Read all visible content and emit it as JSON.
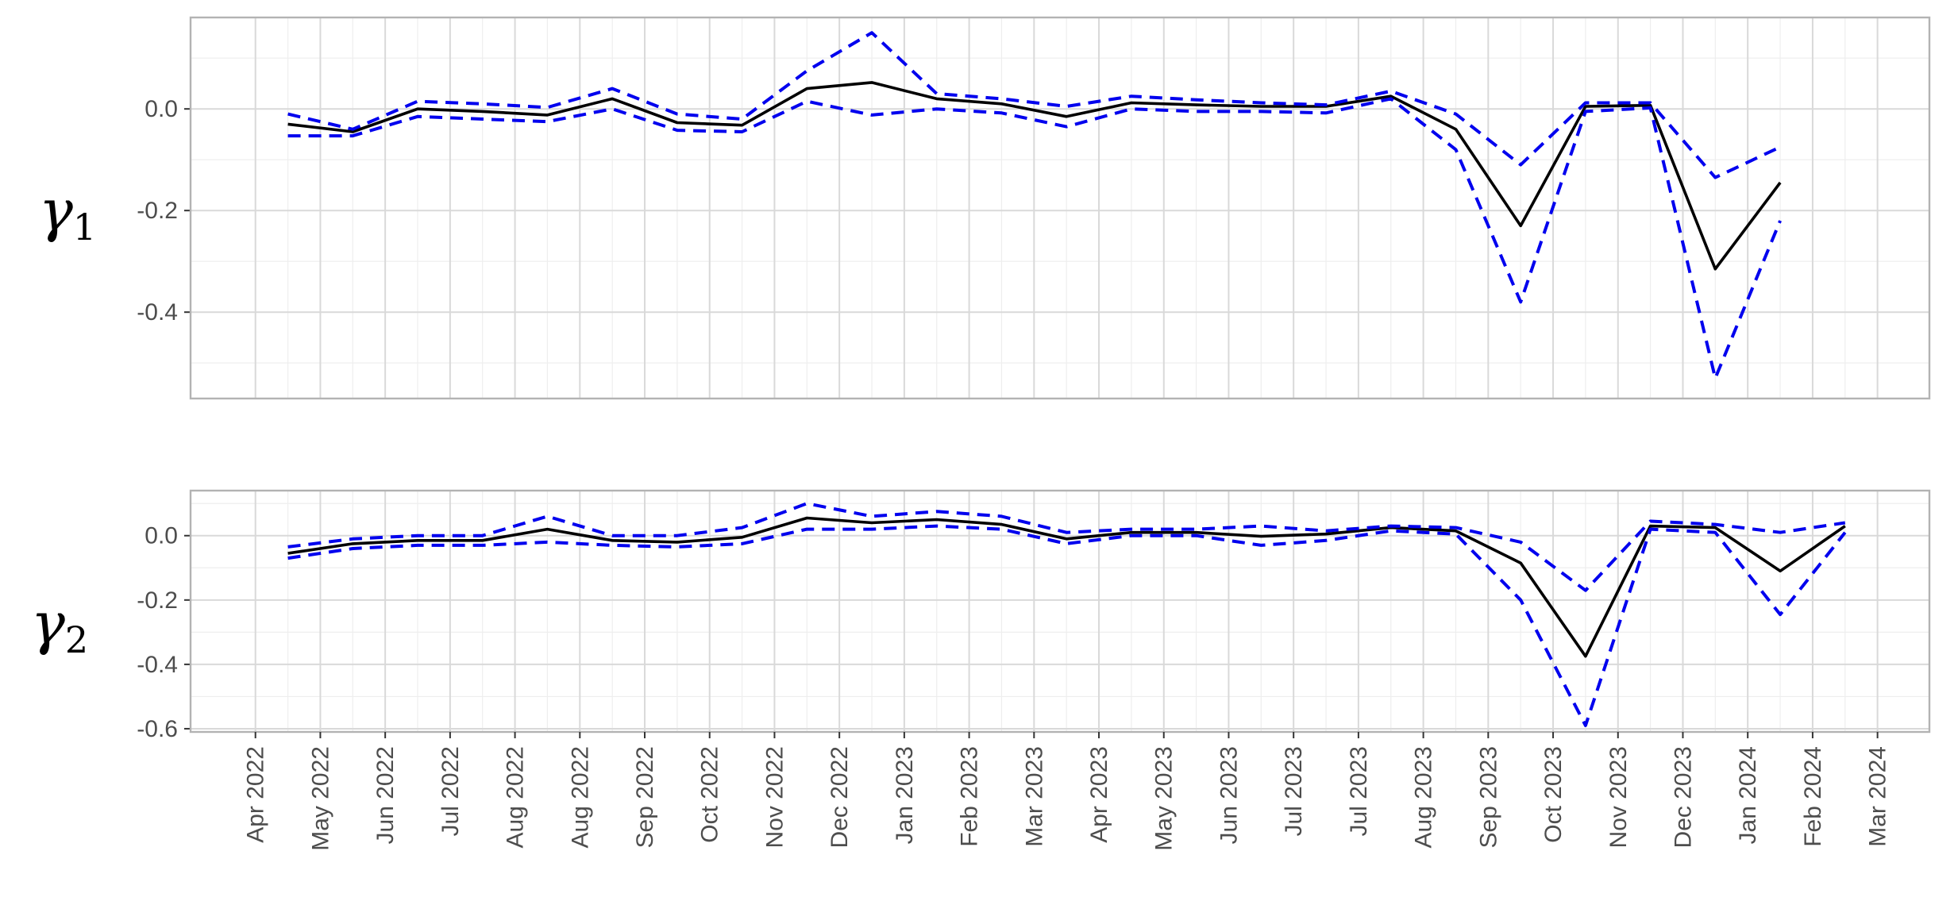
{
  "chart_data": [
    {
      "type": "line",
      "title": "",
      "ylabel": "γ1",
      "ylabel_symbol": "γ",
      "ylabel_subscript": "1",
      "ylim": [
        -0.57,
        0.18
      ],
      "y_ticks": [
        -0.4,
        -0.2,
        0.0
      ],
      "y_tick_labels": [
        "-0.4",
        "-0.2",
        "0.0"
      ],
      "grid": true,
      "x": [
        1.5,
        2.5,
        3.5,
        4.5,
        5.5,
        6.5,
        7.5,
        8.5,
        9.5,
        10.5,
        11.5,
        12.5,
        13.5,
        14.5,
        15.5,
        16.5,
        17.5,
        18.5,
        19.5,
        20.5,
        21.5,
        22.5,
        23.5,
        24.5,
        25.5
      ],
      "series": [
        {
          "name": "",
          "style": "solid",
          "color": "#000000",
          "values": [
            -0.03,
            -0.045,
            0.0,
            -0.005,
            -0.012,
            0.02,
            -0.027,
            -0.032,
            0.04,
            0.052,
            0.02,
            0.01,
            -0.015,
            0.012,
            0.008,
            0.005,
            0.005,
            0.025,
            -0.04,
            -0.23,
            0.005,
            0.007,
            -0.315,
            -0.145,
            null
          ]
        },
        {
          "name": "",
          "style": "dashed",
          "color": "#0000ee",
          "values": [
            -0.01,
            -0.04,
            0.015,
            0.01,
            0.003,
            0.04,
            -0.01,
            -0.02,
            0.075,
            0.15,
            0.03,
            0.02,
            0.005,
            0.025,
            0.018,
            0.012,
            0.008,
            0.035,
            -0.01,
            -0.11,
            0.012,
            0.012,
            -0.135,
            -0.075,
            null
          ]
        },
        {
          "name": "",
          "style": "dashed",
          "color": "#0000ee",
          "values": [
            -0.053,
            -0.053,
            -0.015,
            -0.02,
            -0.025,
            0.0,
            -0.042,
            -0.045,
            0.015,
            -0.012,
            0.0,
            -0.008,
            -0.035,
            0.0,
            -0.005,
            -0.005,
            -0.008,
            0.02,
            -0.08,
            -0.38,
            -0.005,
            0.002,
            -0.53,
            -0.22,
            null
          ]
        }
      ]
    },
    {
      "type": "line",
      "title": "",
      "ylabel": "γ2",
      "ylabel_symbol": "γ",
      "ylabel_subscript": "2",
      "ylim": [
        -0.61,
        0.14
      ],
      "y_ticks": [
        -0.6,
        -0.4,
        -0.2,
        0.0
      ],
      "y_tick_labels": [
        "-0.6",
        "-0.4",
        "-0.2",
        "0.0"
      ],
      "grid": true,
      "x": [
        1.5,
        2.5,
        3.5,
        4.5,
        5.5,
        6.5,
        7.5,
        8.5,
        9.5,
        10.5,
        11.5,
        12.5,
        13.5,
        14.5,
        15.5,
        16.5,
        17.5,
        18.5,
        19.5,
        20.5,
        21.5,
        22.5,
        23.5,
        24.5,
        25.5
      ],
      "series": [
        {
          "name": "",
          "style": "solid",
          "color": "#000000",
          "values": [
            -0.055,
            -0.025,
            -0.015,
            -0.015,
            0.02,
            -0.015,
            -0.02,
            -0.005,
            0.055,
            0.04,
            0.05,
            0.035,
            -0.01,
            0.01,
            0.01,
            -0.002,
            0.005,
            0.025,
            0.015,
            -0.085,
            -0.375,
            0.03,
            0.025,
            -0.11,
            0.03
          ]
        },
        {
          "name": "",
          "style": "dashed",
          "color": "#0000ee",
          "values": [
            -0.035,
            -0.01,
            0.0,
            0.0,
            0.06,
            0.0,
            0.0,
            0.025,
            0.1,
            0.06,
            0.075,
            0.06,
            0.01,
            0.02,
            0.02,
            0.03,
            0.015,
            0.03,
            0.025,
            -0.02,
            -0.17,
            0.045,
            0.035,
            0.01,
            0.04
          ]
        },
        {
          "name": "",
          "style": "dashed",
          "color": "#0000ee",
          "values": [
            -0.07,
            -0.04,
            -0.03,
            -0.03,
            -0.02,
            -0.03,
            -0.035,
            -0.025,
            0.02,
            0.02,
            0.03,
            0.02,
            -0.025,
            0.0,
            0.0,
            -0.03,
            -0.015,
            0.015,
            0.005,
            -0.2,
            -0.59,
            0.02,
            0.01,
            -0.245,
            0.01
          ]
        }
      ]
    }
  ],
  "x_axis": {
    "xlim": [
      0.0,
      26.8
    ],
    "tick_labels": [
      "Apr 2022",
      "May 2022",
      "Jun 2022",
      "Jul 2022",
      "Aug 2022",
      "Aug 2022",
      "Sep 2022",
      "Oct 2022",
      "Nov 2022",
      "Dec 2022",
      "Jan 2023",
      "Feb 2023",
      "Mar 2023",
      "Apr 2023",
      "May 2023",
      "Jun 2023",
      "Jul 2023",
      "Jul 2023",
      "Aug 2023",
      "Sep 2023",
      "Oct 2023",
      "Nov 2023",
      "Dec 2023",
      "Jan 2024",
      "Feb 2024",
      "Mar 2024"
    ]
  },
  "colors": {
    "panel_border": "#b3b3b3",
    "grid_major": "#d9d9d9",
    "grid_minor": "#eeeeee",
    "estimate": "#000000",
    "bounds": "#0000ee"
  }
}
